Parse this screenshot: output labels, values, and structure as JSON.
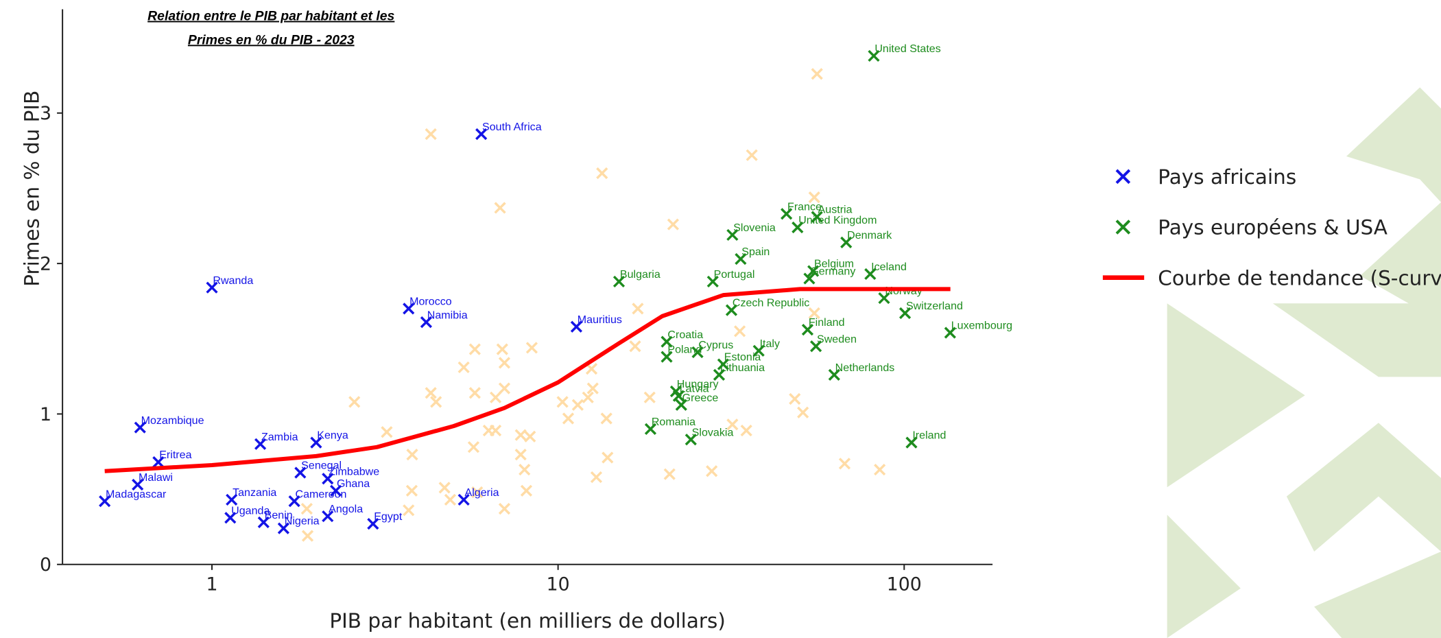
{
  "chart_data": {
    "type": "scatter",
    "title": [
      "Relation entre le PIB par habitant et les",
      "Primes en % du PIB - 2023"
    ],
    "x_label": "PIB par habitant (en milliers de dollars)",
    "y_label": "Primes en % du PIB",
    "x_log": true,
    "xlim": [
      0.37,
      180
    ],
    "ylim": [
      0,
      3.69
    ],
    "xticks": [
      1,
      10,
      100
    ],
    "yticks": [
      0,
      1,
      2,
      3
    ],
    "grid": false,
    "legend": "right",
    "series": [
      {
        "name": "Pays africains",
        "color": "#1414e6",
        "labels": [
          "South Africa",
          "Rwanda",
          "Morocco",
          "Namibia",
          "Mauritius",
          "Mozambique",
          "Eritrea",
          "Malawi",
          "Madagascar",
          "Zambia",
          "Kenya",
          "Senegal",
          "Zimbabwe",
          "Ghana",
          "Tanzania",
          "Cameroon",
          "Uganda",
          "Benin",
          "Nigeria",
          "Angola",
          "Egypt",
          "Algeria"
        ],
        "x": [
          6.0,
          1.0,
          3.7,
          4.16,
          11.3,
          0.62,
          0.7,
          0.61,
          0.49,
          1.38,
          2.0,
          1.8,
          2.16,
          2.28,
          1.14,
          1.73,
          1.13,
          1.41,
          1.61,
          2.16,
          2.92,
          5.34
        ],
        "values": [
          2.86,
          1.84,
          1.7,
          1.61,
          1.58,
          0.91,
          0.68,
          0.53,
          0.42,
          0.8,
          0.81,
          0.61,
          0.57,
          0.49,
          0.43,
          0.42,
          0.31,
          0.28,
          0.24,
          0.32,
          0.27,
          0.43
        ]
      },
      {
        "name": "Pays européens & USA",
        "color": "#1e8c1e",
        "labels": [
          "United States",
          "France",
          "Austria",
          "United Kingdom",
          "Slovenia",
          "Denmark",
          "Spain",
          "Belgium",
          "Germany",
          "Iceland",
          "Bulgaria",
          "Portugal",
          "Norway",
          "Czech Republic",
          "Switzerland",
          "Finland",
          "Luxembourg",
          "Sweden",
          "Croatia",
          "Poland",
          "Cyprus",
          "Italy",
          "Estonia",
          "Lithuania",
          "Netherlands",
          "Hungary",
          "Latvia",
          "Greece",
          "Romania",
          "Slovakia",
          "Ireland"
        ],
        "x": [
          81.7,
          45.7,
          56,
          49.2,
          31.9,
          68,
          33.7,
          54.6,
          53.2,
          79.8,
          15.0,
          28.0,
          87.5,
          31.7,
          100.6,
          52.6,
          135.8,
          55.6,
          20.6,
          20.6,
          25.3,
          38.0,
          30.0,
          29.2,
          62.8,
          21.9,
          22.3,
          22.7,
          18.5,
          24.2,
          105
        ],
        "values": [
          3.38,
          2.33,
          2.31,
          2.24,
          2.19,
          2.14,
          2.03,
          1.95,
          1.9,
          1.93,
          1.88,
          1.88,
          1.77,
          1.69,
          1.67,
          1.56,
          1.54,
          1.45,
          1.48,
          1.38,
          1.41,
          1.42,
          1.33,
          1.26,
          1.26,
          1.15,
          1.12,
          1.06,
          0.9,
          0.83,
          0.81
        ]
      },
      {
        "name": "Courbe de tendance (S-curve)",
        "color": "#ff0000",
        "type": "line",
        "x": [
          0.49,
          1,
          2,
          3,
          5,
          7,
          10,
          15,
          20,
          30,
          50,
          136
        ],
        "values": [
          0.62,
          0.66,
          0.72,
          0.78,
          0.92,
          1.04,
          1.21,
          1.47,
          1.65,
          1.79,
          1.83,
          1.83
        ]
      },
      {
        "color": "#ffdca6",
        "x": [
          56,
          4.29,
          6.8,
          13.4,
          36.3,
          55,
          21.5,
          17,
          16.7,
          55,
          33.5,
          8.4,
          6.9,
          7.0,
          5.75,
          5.34,
          7.0,
          5.75,
          6.6,
          4.29,
          4.44,
          2.58,
          3.2,
          3.79,
          5.7,
          6.3,
          6.6,
          7.8,
          8.3,
          7.8,
          8.0,
          8.1,
          3.78,
          3.7,
          4.7,
          4.88,
          7.0,
          5.84,
          1.88,
          1.89,
          10.3,
          10.7,
          11.4,
          12.2,
          12.6,
          12.5,
          13.8,
          13.9,
          12.9,
          18.4,
          21,
          27.8,
          31.9,
          35,
          48.3,
          51,
          67.3,
          85
        ],
        "values": [
          3.26,
          2.86,
          2.37,
          2.6,
          2.72,
          2.44,
          2.26,
          1.7,
          1.45,
          1.67,
          1.55,
          1.44,
          1.43,
          1.34,
          1.43,
          1.31,
          1.17,
          1.14,
          1.11,
          1.14,
          1.08,
          1.08,
          0.88,
          0.73,
          0.78,
          0.89,
          0.89,
          0.86,
          0.85,
          0.73,
          0.63,
          0.49,
          0.49,
          0.36,
          0.51,
          0.43,
          0.37,
          0.48,
          0.37,
          0.19,
          1.08,
          0.97,
          1.06,
          1.11,
          1.17,
          1.3,
          0.97,
          0.71,
          0.58,
          1.11,
          0.6,
          0.62,
          0.93,
          0.89,
          1.1,
          1.01,
          0.67,
          0.63
        ]
      }
    ]
  }
}
